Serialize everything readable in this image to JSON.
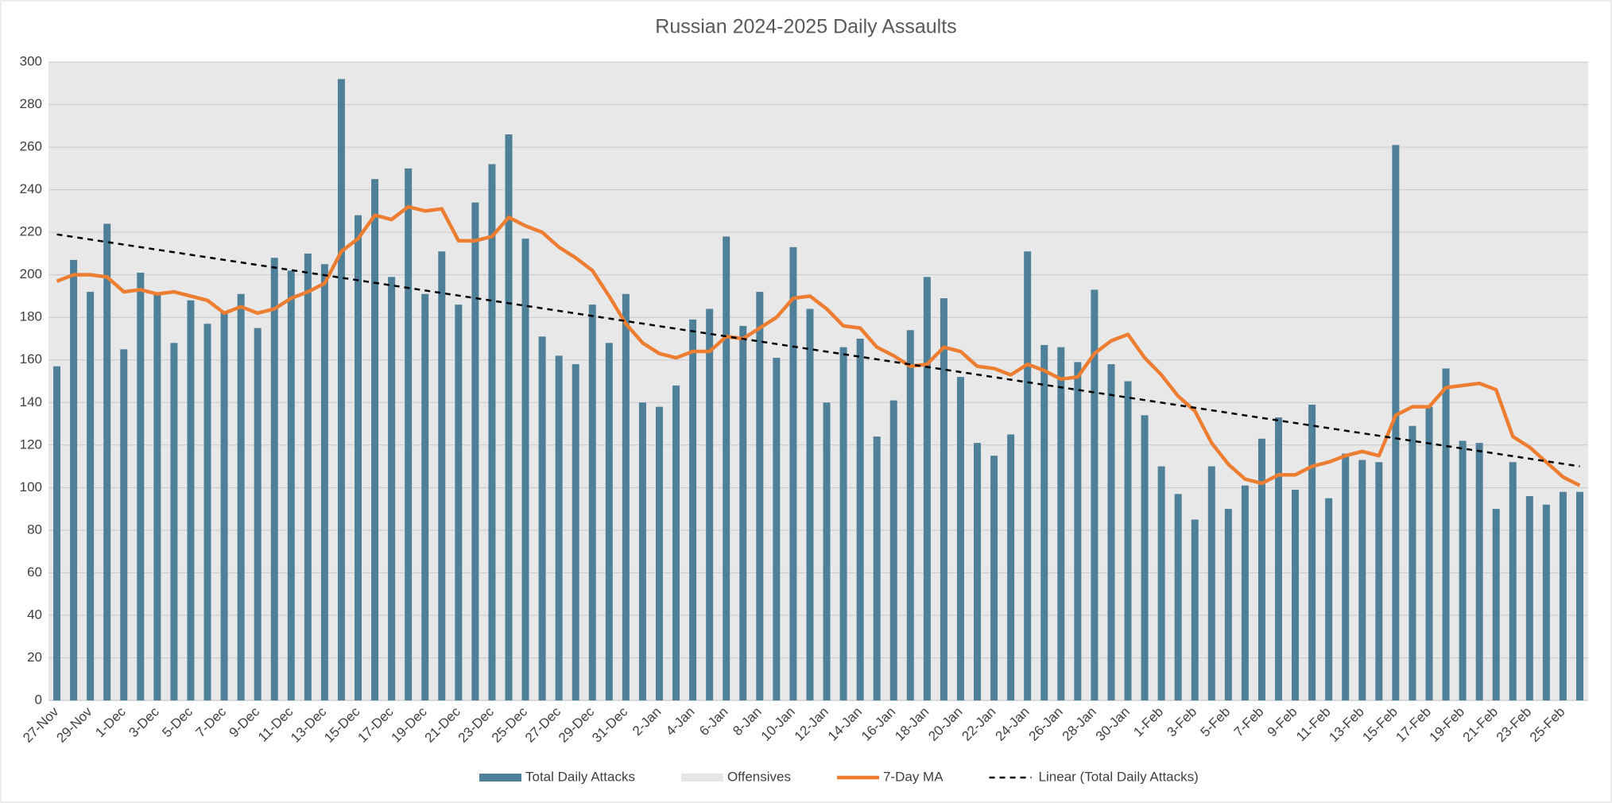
{
  "chart_data": {
    "type": "bar",
    "title": "Russian 2024-2025 Daily Assaults",
    "categories": [
      "27-Nov",
      null,
      "29-Nov",
      null,
      "1-Dec",
      null,
      "3-Dec",
      null,
      "5-Dec",
      null,
      "7-Dec",
      null,
      "9-Dec",
      null,
      "11-Dec",
      null,
      "13-Dec",
      null,
      "15-Dec",
      null,
      "17-Dec",
      null,
      "19-Dec",
      null,
      "21-Dec",
      null,
      "23-Dec",
      null,
      "25-Dec",
      null,
      "27-Dec",
      null,
      "29-Dec",
      null,
      "31-Dec",
      null,
      "2-Jan",
      null,
      "4-Jan",
      null,
      "6-Jan",
      null,
      "8-Jan",
      null,
      "10-Jan",
      null,
      "12-Jan",
      null,
      "14-Jan",
      null,
      "16-Jan",
      null,
      "18-Jan",
      null,
      "20-Jan",
      null,
      "22-Jan",
      null,
      "24-Jan",
      null,
      "26-Jan",
      null,
      "28-Jan",
      null,
      "30-Jan",
      null,
      "1-Feb",
      null,
      "3-Feb",
      null,
      "5-Feb",
      null,
      "7-Feb",
      null,
      "9-Feb",
      null,
      "11-Feb",
      null,
      "13-Feb",
      null,
      "15-Feb",
      null,
      "17-Feb",
      null,
      "19-Feb",
      null,
      "21-Feb",
      null,
      "23-Feb",
      null,
      "25-Feb",
      null
    ],
    "series": [
      {
        "name": "Total Daily Attacks",
        "color": "#4f8099",
        "kind": "bar",
        "values": [
          157,
          207,
          192,
          224,
          165,
          201,
          191,
          168,
          188,
          177,
          183,
          191,
          175,
          208,
          202,
          210,
          205,
          292,
          228,
          245,
          199,
          250,
          191,
          211,
          186,
          234,
          252,
          266,
          217,
          171,
          162,
          158,
          186,
          168,
          191,
          140,
          138,
          148,
          179,
          184,
          218,
          176,
          192,
          161,
          213,
          184,
          140,
          166,
          170,
          124,
          141,
          174,
          199,
          189,
          152,
          121,
          115,
          125,
          211,
          167,
          166,
          159,
          193,
          158,
          150,
          134,
          110,
          97,
          85,
          110,
          90,
          101,
          123,
          133,
          99,
          139,
          95,
          116,
          113,
          112,
          261,
          129,
          138,
          156,
          122,
          121,
          90,
          112,
          96,
          92,
          98,
          98
        ]
      },
      {
        "name": "Offensives",
        "color": "#e6e6e6",
        "kind": "bar",
        "values": [
          null,
          null,
          null,
          null,
          null,
          null,
          null,
          null,
          null,
          null,
          null,
          null,
          null,
          null,
          null,
          null,
          null,
          null,
          null,
          null,
          null,
          null,
          null,
          null,
          null,
          null,
          null,
          null,
          null,
          null,
          null,
          null,
          null,
          null,
          null,
          null,
          null,
          null,
          null,
          null,
          null,
          null,
          null,
          null,
          null,
          null,
          null,
          null,
          null,
          null,
          null,
          null,
          null,
          null,
          null,
          null,
          null,
          null,
          null,
          null,
          null,
          null,
          null,
          null,
          null,
          null,
          null,
          null,
          null,
          null,
          null,
          null,
          null,
          null,
          null,
          null,
          null,
          null,
          null,
          null,
          null,
          null,
          null,
          null,
          null,
          null,
          null,
          null,
          null,
          null,
          null,
          null
        ]
      },
      {
        "name": "7-Day MA",
        "color": "#ed7d31",
        "kind": "line",
        "values": [
          197,
          200,
          200,
          199,
          192,
          193,
          191,
          192,
          190,
          188,
          182,
          185,
          182,
          184,
          189,
          192,
          196,
          211,
          217,
          228,
          226,
          232,
          230,
          231,
          216,
          216,
          218,
          227,
          223,
          220,
          213,
          208,
          202,
          190,
          177,
          168,
          163,
          161,
          164,
          164,
          171,
          170,
          175,
          180,
          189,
          190,
          184,
          176,
          175,
          166,
          162,
          157,
          158,
          166,
          164,
          157,
          156,
          153,
          158,
          155,
          151,
          152,
          163,
          169,
          172,
          161,
          153,
          143,
          136,
          121,
          111,
          104,
          102,
          106,
          106,
          110,
          112,
          115,
          117,
          115,
          134,
          138,
          138,
          147,
          148,
          149,
          146,
          124,
          119,
          112,
          105,
          101
        ]
      }
    ],
    "trend": {
      "name": "Linear (Total Daily Attacks)",
      "color": "#000000",
      "start": 219,
      "end": 110
    },
    "ylim": [
      0,
      300
    ],
    "yticks": [
      0,
      20,
      40,
      60,
      80,
      100,
      120,
      140,
      160,
      180,
      200,
      220,
      240,
      260,
      280,
      300
    ],
    "grid": true
  }
}
